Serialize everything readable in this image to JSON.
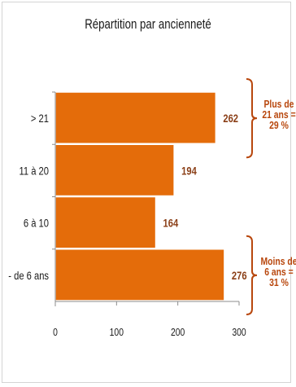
{
  "chart_data": {
    "type": "bar",
    "orientation": "horizontal",
    "title": "Répartition par ancienneté",
    "categories": [
      "> 21",
      "11 à 20",
      "6 à 10",
      "- de 6 ans"
    ],
    "values": [
      262,
      194,
      164,
      276
    ],
    "xlim": [
      0,
      300
    ],
    "xticks": [
      "0",
      "100",
      "200",
      "300"
    ],
    "grid": false,
    "bar_color": "#e46c0a",
    "bar_edge_color": "#ffffff",
    "value_label_color": "#8a3e16",
    "annotations": [
      {
        "lines": [
          "Plus de",
          "21 ans =",
          "29 %"
        ],
        "target_categories": [
          "> 21"
        ]
      },
      {
        "lines": [
          "Moins de",
          "6 ans =",
          "31 %"
        ],
        "target_categories": [
          "- de 6 ans"
        ]
      }
    ],
    "annotation_color": "#b8470d"
  }
}
